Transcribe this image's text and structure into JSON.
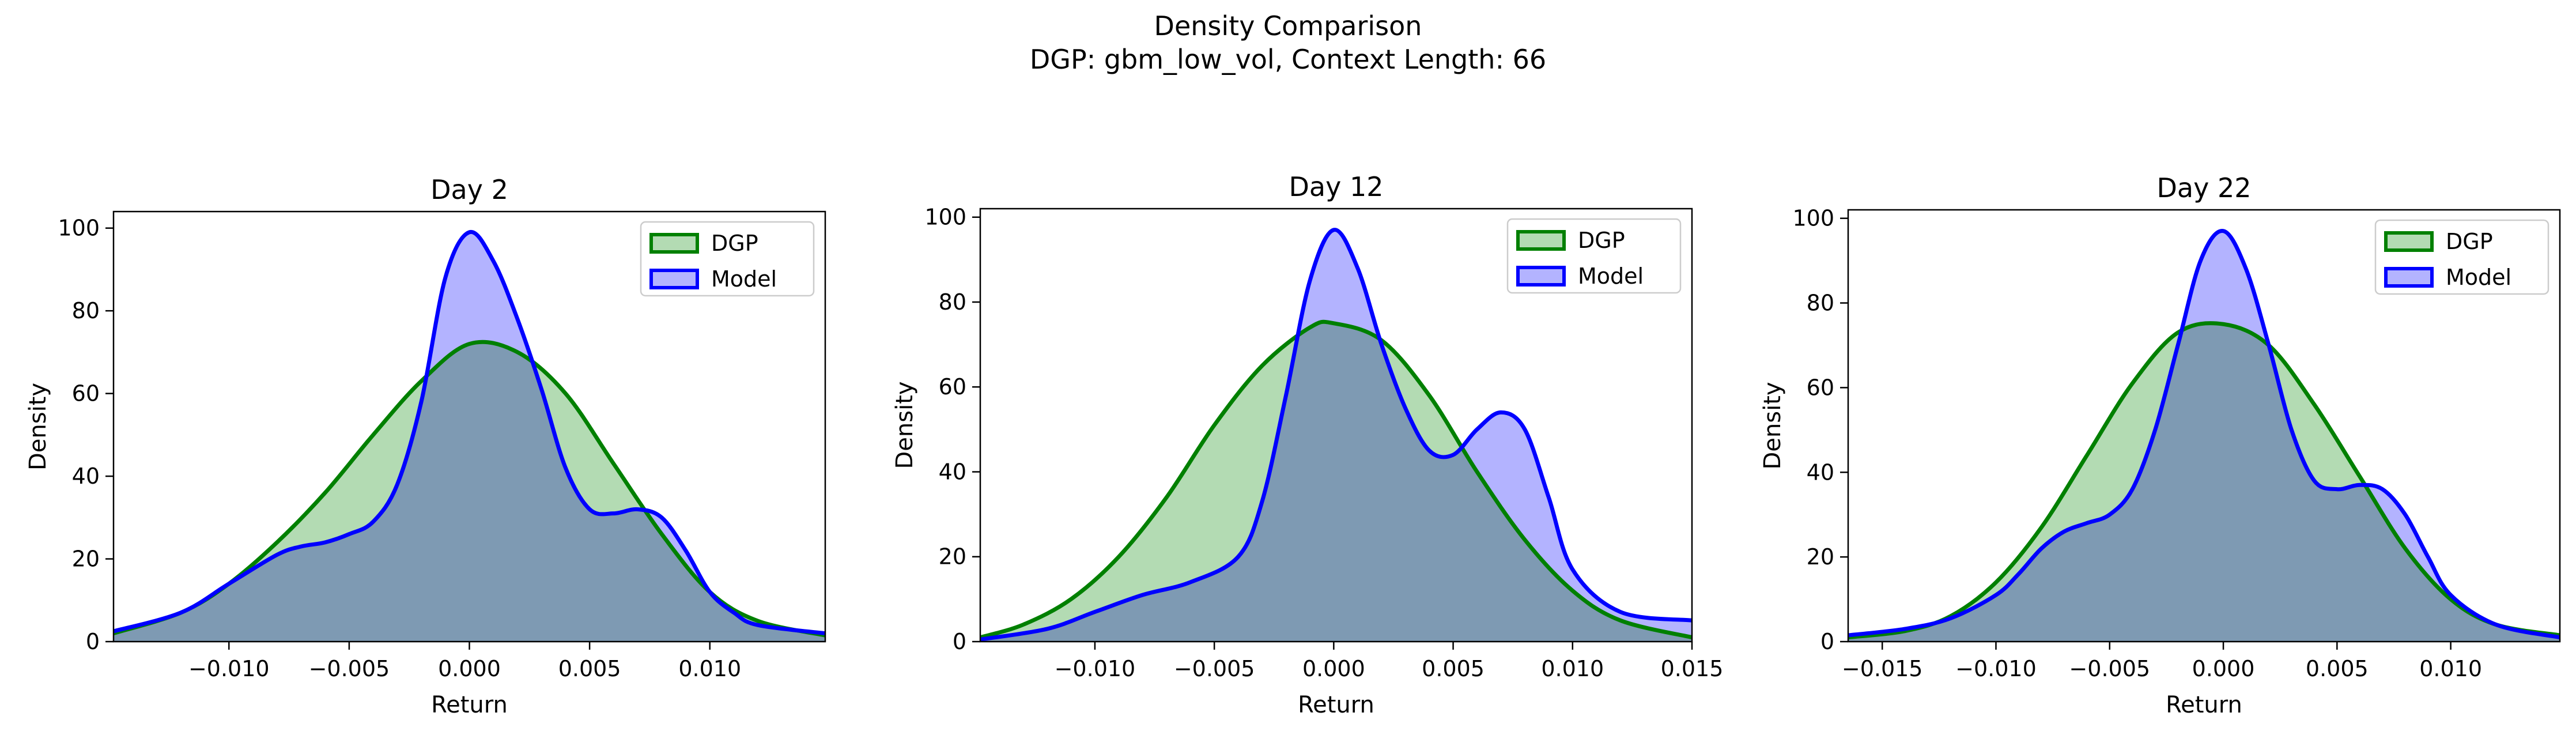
{
  "figure": {
    "title": "Density Comparison",
    "subtitle": "DGP: gbm_low_vol, Context Length: 66"
  },
  "colors": {
    "dgp": "#008000",
    "model": "#0000ff",
    "dgp_fill": "#b3dbb3",
    "model_fill": "#b3b3ff",
    "overlap_fill": "#7c98c8"
  },
  "chart_data": [
    {
      "type": "area",
      "title": "Day 2",
      "xlabel": "Return",
      "ylabel": "Density",
      "xlim": [
        -0.0148,
        0.0148
      ],
      "ylim": [
        0,
        104
      ],
      "xticks": [
        -0.01,
        -0.005,
        0.0,
        0.005,
        0.01
      ],
      "xtick_labels": [
        "−0.010",
        "−0.005",
        "0.000",
        "0.005",
        "0.010"
      ],
      "yticks": [
        0,
        20,
        40,
        60,
        80,
        100
      ],
      "ytick_labels": [
        "0",
        "20",
        "40",
        "60",
        "80",
        "100"
      ],
      "legend_position": "top-right",
      "grid": false,
      "series": [
        {
          "name": "DGP",
          "x": [
            -0.0148,
            -0.012,
            -0.01,
            -0.008,
            -0.006,
            -0.004,
            -0.002,
            0.0,
            0.002,
            0.004,
            0.006,
            0.008,
            0.01,
            0.012,
            0.0148
          ],
          "y": [
            2,
            7,
            14,
            24,
            36,
            50,
            63,
            72,
            70,
            60,
            43,
            26,
            12,
            5,
            1.5
          ]
        },
        {
          "name": "Model",
          "x": [
            -0.0148,
            -0.012,
            -0.01,
            -0.008,
            -0.007,
            -0.006,
            -0.005,
            -0.004,
            -0.003,
            -0.002,
            -0.001,
            0.0,
            0.001,
            0.002,
            0.003,
            0.004,
            0.005,
            0.006,
            0.007,
            0.008,
            0.009,
            0.01,
            0.011,
            0.012,
            0.0148
          ],
          "y": [
            2.5,
            7,
            14,
            21,
            23,
            24,
            26,
            29,
            38,
            58,
            88,
            99,
            92,
            78,
            61,
            42,
            32,
            31,
            32,
            30,
            22,
            12,
            7,
            4,
            2
          ]
        }
      ]
    },
    {
      "type": "area",
      "title": "Day 12",
      "xlabel": "Return",
      "ylabel": "Density",
      "xlim": [
        -0.0148,
        0.015
      ],
      "ylim": [
        0,
        102
      ],
      "xticks": [
        -0.01,
        -0.005,
        0.0,
        0.005,
        0.01,
        0.015
      ],
      "xtick_labels": [
        "−0.010",
        "−0.005",
        "0.000",
        "0.005",
        "0.010",
        "0.015"
      ],
      "yticks": [
        0,
        20,
        40,
        60,
        80,
        100
      ],
      "ytick_labels": [
        "0",
        "20",
        "40",
        "60",
        "80",
        "100"
      ],
      "legend_position": "top-right",
      "grid": false,
      "series": [
        {
          "name": "DGP",
          "x": [
            -0.0148,
            -0.013,
            -0.011,
            -0.009,
            -0.007,
            -0.005,
            -0.003,
            -0.001,
            0.0,
            0.002,
            0.004,
            0.006,
            0.008,
            0.01,
            0.012,
            0.015
          ],
          "y": [
            1,
            4,
            10,
            20,
            34,
            51,
            65,
            74,
            75,
            71,
            58,
            40,
            24,
            12,
            5,
            1
          ]
        },
        {
          "name": "Model",
          "x": [
            -0.0148,
            -0.012,
            -0.01,
            -0.008,
            -0.006,
            -0.004,
            -0.003,
            -0.002,
            -0.001,
            0.0,
            0.001,
            0.002,
            0.003,
            0.004,
            0.005,
            0.006,
            0.007,
            0.008,
            0.009,
            0.01,
            0.012,
            0.015
          ],
          "y": [
            0.5,
            3,
            7,
            11,
            14,
            20,
            33,
            58,
            85,
            97,
            88,
            70,
            55,
            45,
            44,
            50,
            54,
            50,
            34,
            17,
            7,
            5
          ]
        }
      ]
    },
    {
      "type": "area",
      "title": "Day 22",
      "xlabel": "Return",
      "ylabel": "Density",
      "xlim": [
        -0.0165,
        0.0148
      ],
      "ylim": [
        0,
        102
      ],
      "xticks": [
        -0.015,
        -0.01,
        -0.005,
        0.0,
        0.005,
        0.01
      ],
      "xtick_labels": [
        "−0.015",
        "−0.010",
        "−0.005",
        "0.000",
        "0.005",
        "0.010"
      ],
      "yticks": [
        0,
        20,
        40,
        60,
        80,
        100
      ],
      "ytick_labels": [
        "0",
        "20",
        "40",
        "60",
        "80",
        "100"
      ],
      "legend_position": "top-right",
      "grid": false,
      "series": [
        {
          "name": "DGP",
          "x": [
            -0.0165,
            -0.014,
            -0.012,
            -0.01,
            -0.008,
            -0.006,
            -0.004,
            -0.002,
            0.0,
            0.002,
            0.004,
            0.006,
            0.008,
            0.01,
            0.012,
            0.0148
          ],
          "y": [
            1,
            2.5,
            6,
            14,
            27,
            44,
            61,
            73,
            75,
            70,
            56,
            39,
            22,
            10,
            4,
            1.5
          ]
        },
        {
          "name": "Model",
          "x": [
            -0.0165,
            -0.014,
            -0.012,
            -0.01,
            -0.009,
            -0.008,
            -0.007,
            -0.006,
            -0.005,
            -0.004,
            -0.003,
            -0.002,
            -0.001,
            0.0,
            0.001,
            0.002,
            0.003,
            0.004,
            0.005,
            0.006,
            0.007,
            0.008,
            0.009,
            0.01,
            0.012,
            0.0148
          ],
          "y": [
            1.5,
            3,
            5.5,
            11,
            16,
            22,
            26,
            28,
            30,
            36,
            50,
            70,
            90,
            97,
            88,
            70,
            50,
            38,
            36,
            37,
            36,
            30,
            20,
            11,
            4,
            1
          ]
        }
      ]
    }
  ]
}
